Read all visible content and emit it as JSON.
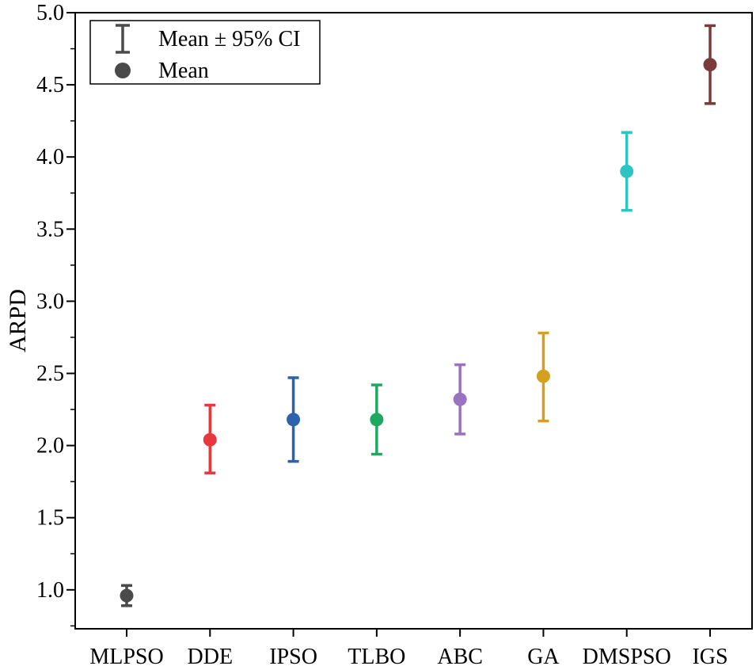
{
  "chart_data": {
    "type": "scatter",
    "ylabel": "ARPD",
    "xlabel": "",
    "ylim": [
      0.73,
      5.0
    ],
    "yticks": [
      "1.0",
      "1.5",
      "2.0",
      "2.5",
      "3.0",
      "3.5",
      "4.0",
      "4.5",
      "5.0"
    ],
    "categories": [
      "MLPSO",
      "DDE",
      "IPSO",
      "TLBO",
      "ABC",
      "GA",
      "DMSPSO",
      "IGS"
    ],
    "mean": [
      0.96,
      2.04,
      2.18,
      2.18,
      2.32,
      2.48,
      3.9,
      4.64
    ],
    "ci_lower": [
      0.89,
      1.81,
      1.89,
      1.94,
      2.08,
      2.17,
      3.63,
      4.37
    ],
    "ci_upper": [
      1.03,
      2.28,
      2.47,
      2.42,
      2.56,
      2.78,
      4.17,
      4.91
    ],
    "colors": [
      "#4a4a4a",
      "#e8383d",
      "#2d62ad",
      "#1fa861",
      "#9a72c2",
      "#d4a020",
      "#2fc4c4",
      "#7a3b3b"
    ],
    "legend": {
      "position": "top-left",
      "items": [
        {
          "symbol": "errorbar",
          "label": "Mean ± 95% CI"
        },
        {
          "symbol": "circle",
          "label": "Mean"
        }
      ]
    },
    "grid": false
  }
}
